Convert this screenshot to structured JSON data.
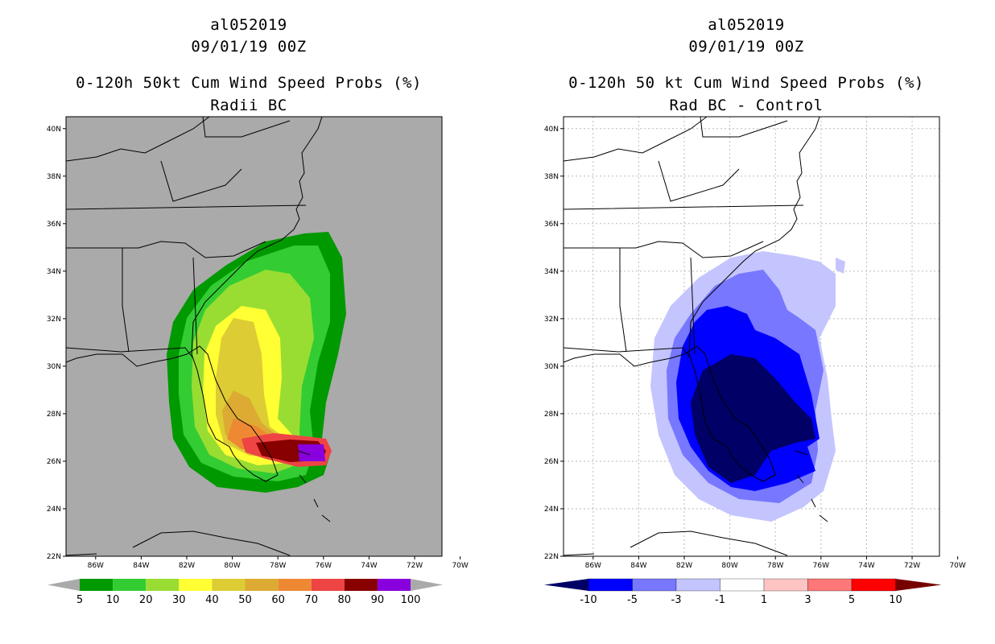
{
  "left_panel": {
    "storm_id": "al052019",
    "datetime": "09/01/19 00Z",
    "title": "0-120h 50kt Cum Wind Speed Probs (%)",
    "subtitle": "Radii BC",
    "lat_labels": [
      "40N",
      "38N",
      "36N",
      "34N",
      "32N",
      "30N",
      "28N",
      "26N",
      "24N",
      "22N"
    ],
    "lon_labels": [
      "86W",
      "84W",
      "82W",
      "80W",
      "78W",
      "76W",
      "74W",
      "72W",
      "70W"
    ],
    "colorbar_labels": [
      "5",
      "10",
      "20",
      "30",
      "40",
      "50",
      "60",
      "70",
      "80",
      "90",
      "100"
    ],
    "colorbar_colors": [
      "#009900",
      "#33cc33",
      "#99dd33",
      "#ffff33",
      "#ddcc33",
      "#ddaa33",
      "#ee8833",
      "#ee4444",
      "#880000",
      "#8800dd"
    ]
  },
  "right_panel": {
    "storm_id": "al052019",
    "datetime": "09/01/19 00Z",
    "title": "0-120h 50 kt Cum Wind Speed Probs (%)",
    "subtitle": "Rad BC - Control",
    "lat_labels": [
      "40N",
      "38N",
      "36N",
      "34N",
      "32N",
      "30N",
      "28N",
      "26N",
      "24N",
      "22N"
    ],
    "lon_labels": [
      "86W",
      "84W",
      "82W",
      "80W",
      "78W",
      "76W",
      "74W",
      "72W",
      "70W"
    ],
    "colorbar_labels": [
      "-10",
      "-5",
      "-3",
      "-1",
      "1",
      "3",
      "5",
      "10"
    ],
    "colorbar_colors": [
      "#000066",
      "#0000ff",
      "#7777ff",
      "#c4c4ff",
      "#ffffff",
      "#ffc4c4",
      "#ff7777",
      "#ff0000",
      "#770000"
    ]
  }
}
